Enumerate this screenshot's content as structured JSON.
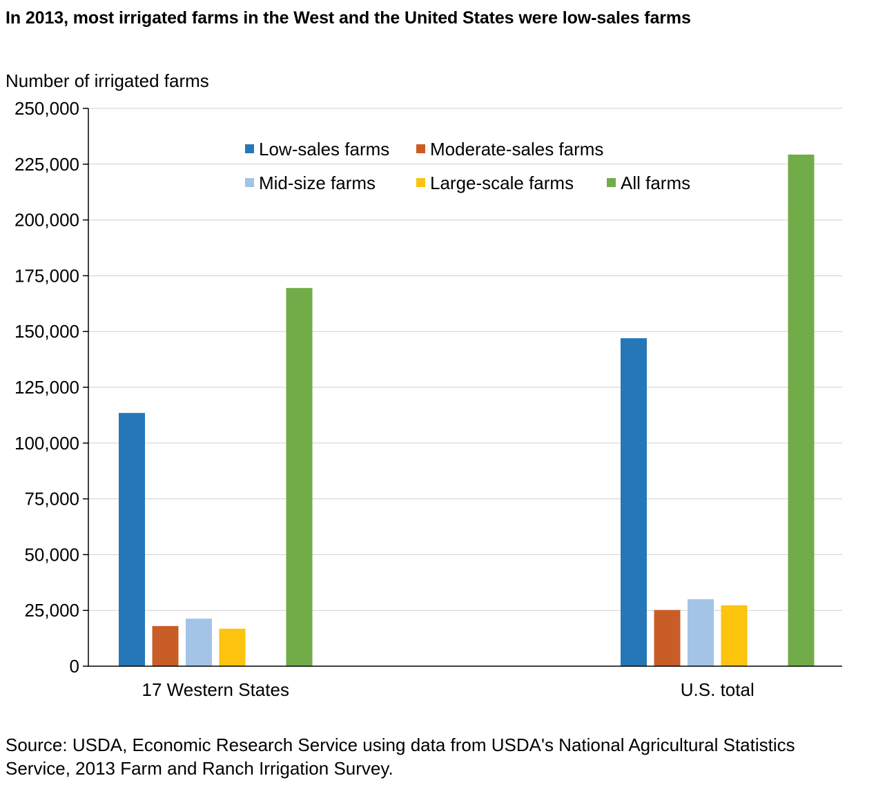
{
  "title": "In 2013, most irrigated farms in the West and the United States were low-sales farms",
  "source": "Source: USDA, Economic Research Service using data from USDA's National Agricultural Statistics Service, 2013 Farm and Ranch Irrigation Survey.",
  "chart_data": {
    "type": "bar",
    "title": "In 2013, most irrigated farms in the West and the United States were low-sales farms",
    "xlabel": "",
    "ylabel": "Number of irrigated farms",
    "ylim": [
      0,
      250000
    ],
    "yticks": [
      "0",
      "25,000",
      "50,000",
      "75,000",
      "100,000",
      "125,000",
      "150,000",
      "175,000",
      "200,000",
      "225,000",
      "250,000"
    ],
    "ytick_values": [
      0,
      25000,
      50000,
      75000,
      100000,
      125000,
      150000,
      175000,
      200000,
      225000,
      250000
    ],
    "grid": true,
    "legend_position": "top-center",
    "categories": [
      "17 Western States",
      "U.S. total"
    ],
    "series": [
      {
        "name": "Low-sales farms",
        "color": "#2677b8",
        "values": [
          113500,
          147000
        ]
      },
      {
        "name": "Moderate-sales farms",
        "color": "#c85d28",
        "values": [
          18000,
          25200
        ]
      },
      {
        "name": "Mid-size farms",
        "color": "#a3c4e6",
        "values": [
          21300,
          30000
        ]
      },
      {
        "name": "Large-scale farms",
        "color": "#fcc30f",
        "values": [
          16800,
          27300
        ]
      },
      {
        "name": "All farms",
        "color": "#72ac48",
        "values": [
          169500,
          229300
        ]
      }
    ]
  }
}
